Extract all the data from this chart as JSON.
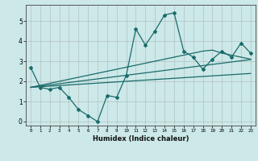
{
  "xlabel": "Humidex (Indice chaleur)",
  "ylabel": "",
  "bg_color": "#cce8e8",
  "line_color": "#1a6b6b",
  "x": [
    0,
    1,
    2,
    3,
    4,
    5,
    6,
    7,
    8,
    9,
    10,
    11,
    12,
    13,
    14,
    15,
    16,
    17,
    18,
    19,
    20,
    21,
    22,
    23
  ],
  "y_main": [
    2.7,
    1.7,
    1.6,
    1.7,
    1.2,
    0.6,
    0.3,
    0.0,
    1.3,
    1.2,
    2.3,
    4.6,
    3.8,
    4.5,
    5.3,
    5.4,
    3.5,
    3.2,
    2.6,
    3.1,
    3.5,
    3.2,
    3.9,
    3.4
  ],
  "y_trend1": [
    1.7,
    1.73,
    1.76,
    1.79,
    1.82,
    1.85,
    1.88,
    1.91,
    1.94,
    1.97,
    2.0,
    2.03,
    2.06,
    2.09,
    2.12,
    2.15,
    2.18,
    2.21,
    2.24,
    2.27,
    2.3,
    2.33,
    2.36,
    2.39
  ],
  "y_trend2": [
    1.7,
    1.76,
    1.82,
    1.88,
    1.94,
    2.0,
    2.06,
    2.12,
    2.18,
    2.24,
    2.3,
    2.36,
    2.42,
    2.48,
    2.54,
    2.6,
    2.66,
    2.72,
    2.78,
    2.84,
    2.9,
    2.96,
    3.02,
    3.08
  ],
  "y_trend3": [
    1.7,
    1.8,
    1.9,
    2.0,
    2.1,
    2.2,
    2.3,
    2.4,
    2.5,
    2.6,
    2.7,
    2.8,
    2.9,
    3.0,
    3.1,
    3.2,
    3.3,
    3.4,
    3.5,
    3.55,
    3.4,
    3.3,
    3.2,
    3.1
  ],
  "ylim": [
    -0.2,
    5.8
  ],
  "xlim": [
    -0.5,
    23.5
  ],
  "yticks": [
    0,
    1,
    2,
    3,
    4,
    5
  ],
  "xticks": [
    0,
    1,
    2,
    3,
    4,
    5,
    6,
    7,
    8,
    9,
    10,
    11,
    12,
    13,
    14,
    15,
    16,
    17,
    18,
    19,
    20,
    21,
    22,
    23
  ],
  "grid_color": "#999999",
  "marker": "D",
  "marker_size": 2.0,
  "line_width": 0.9
}
